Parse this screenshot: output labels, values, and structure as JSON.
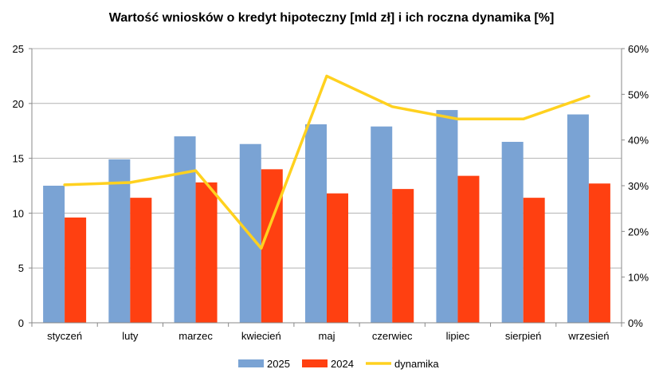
{
  "chart_data": {
    "type": "bar",
    "title": "Wartość wniosków o kredyt hipoteczny [mld zł] i ich roczna dynamika [%]",
    "categories": [
      "styczeń",
      "luty",
      "marzec",
      "kwiecień",
      "maj",
      "czerwiec",
      "lipiec",
      "sierpień",
      "wrzesień"
    ],
    "series": [
      {
        "name": "2025",
        "type": "bar",
        "axis": "left",
        "color": "#7aa3d4",
        "values": [
          12.5,
          14.9,
          17.0,
          16.3,
          18.1,
          17.9,
          19.4,
          16.5,
          19.0
        ]
      },
      {
        "name": "2024",
        "type": "bar",
        "axis": "left",
        "color": "#ff4011",
        "values": [
          9.6,
          11.4,
          12.8,
          14.0,
          11.8,
          12.2,
          13.4,
          11.4,
          12.7
        ]
      },
      {
        "name": "dynamika",
        "type": "line",
        "axis": "right",
        "color": "#ffd11f",
        "values": [
          30.2,
          30.7,
          33.3,
          16.3,
          54.0,
          47.3,
          44.6,
          44.6,
          49.6
        ]
      }
    ],
    "y_left": {
      "min": 0,
      "max": 25,
      "ticks": [
        "0",
        "5",
        "10",
        "15",
        "20",
        "25"
      ]
    },
    "y_right": {
      "min": 0,
      "max": 60,
      "ticks": [
        "0%",
        "10%",
        "20%",
        "30%",
        "40%",
        "50%",
        "60%"
      ]
    },
    "grid": true,
    "legend": "bottom"
  }
}
